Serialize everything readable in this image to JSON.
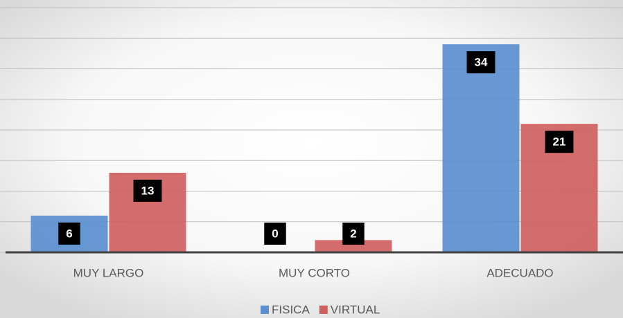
{
  "chart_data": {
    "type": "bar",
    "categories": [
      "MUY LARGO",
      "MUY CORTO",
      "ADECUADO"
    ],
    "series": [
      {
        "name": "FISICA",
        "color": "#5b8fcf",
        "values": [
          6,
          0,
          34
        ]
      },
      {
        "name": "VIRTUAL",
        "color": "#cf5f5f",
        "values": [
          13,
          2,
          21
        ]
      }
    ],
    "ylim": [
      0,
      40
    ],
    "yticks": [
      0,
      5,
      10,
      15,
      20,
      25,
      30,
      35,
      40
    ],
    "grid": true,
    "legend": "bottom"
  }
}
